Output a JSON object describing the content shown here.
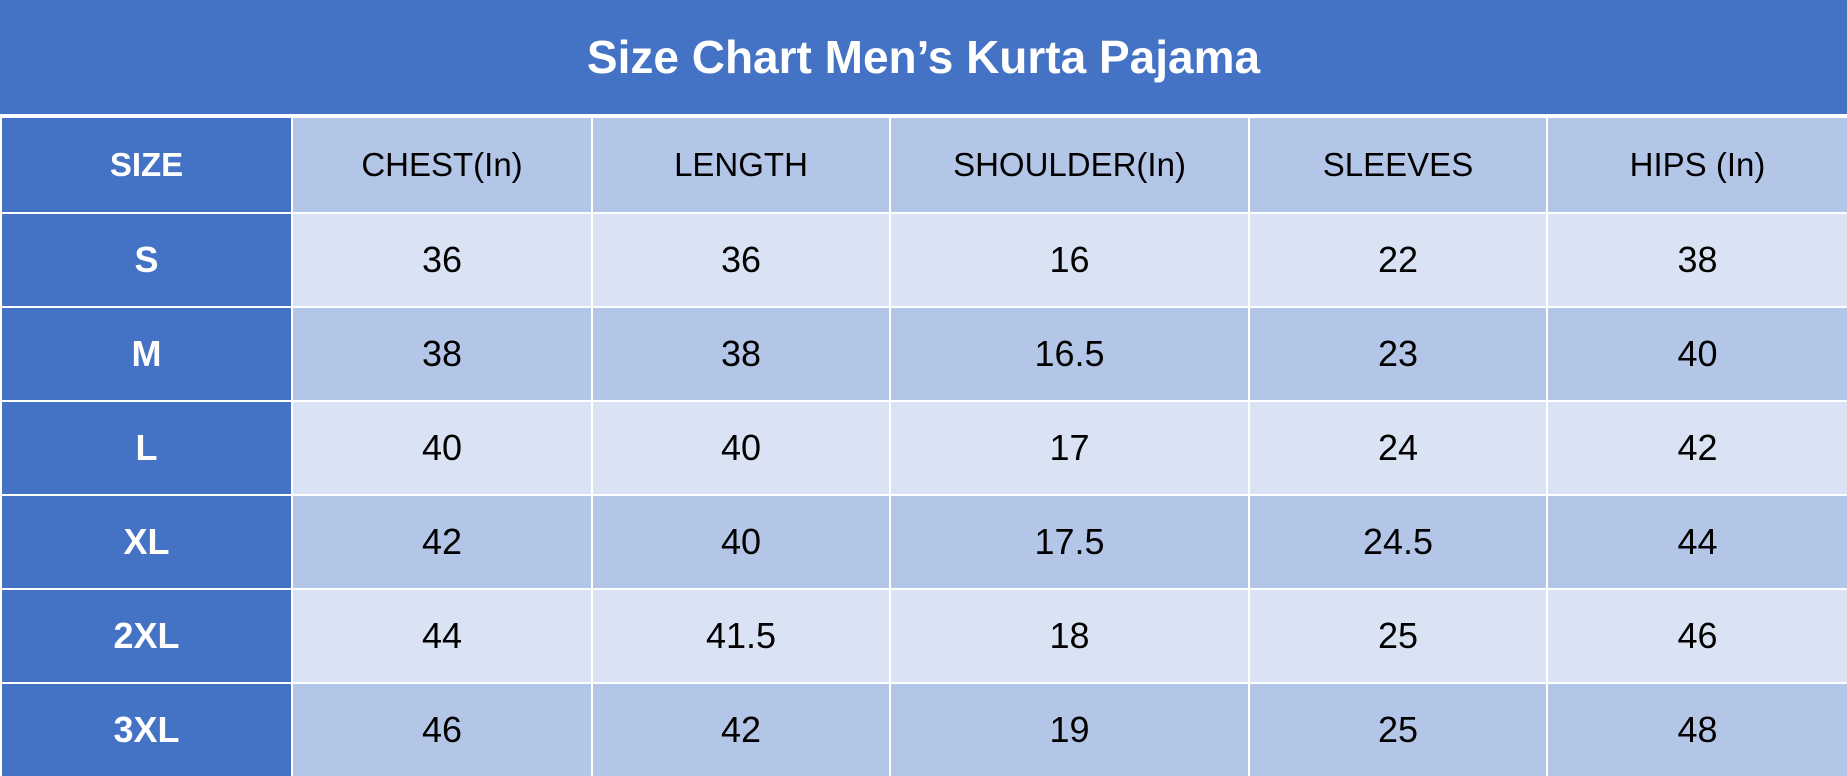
{
  "title": "Size Chart Men’s Kurta Pajama",
  "table": {
    "header": [
      "SIZE",
      "CHEST(In)",
      "LENGTH",
      "SHOULDER(In)",
      "SLEEVES",
      "HIPS (In)"
    ],
    "rows": [
      [
        "S",
        36,
        36,
        16,
        22,
        38
      ],
      [
        "M",
        38,
        38,
        16.5,
        23,
        40
      ],
      [
        "L",
        40,
        40,
        17,
        24,
        42
      ],
      [
        "XL",
        42,
        40,
        17.5,
        24.5,
        44
      ],
      [
        "2XL",
        44,
        41.5,
        18,
        25,
        46
      ],
      [
        "3XL",
        46,
        42,
        19,
        25,
        48
      ]
    ]
  }
}
